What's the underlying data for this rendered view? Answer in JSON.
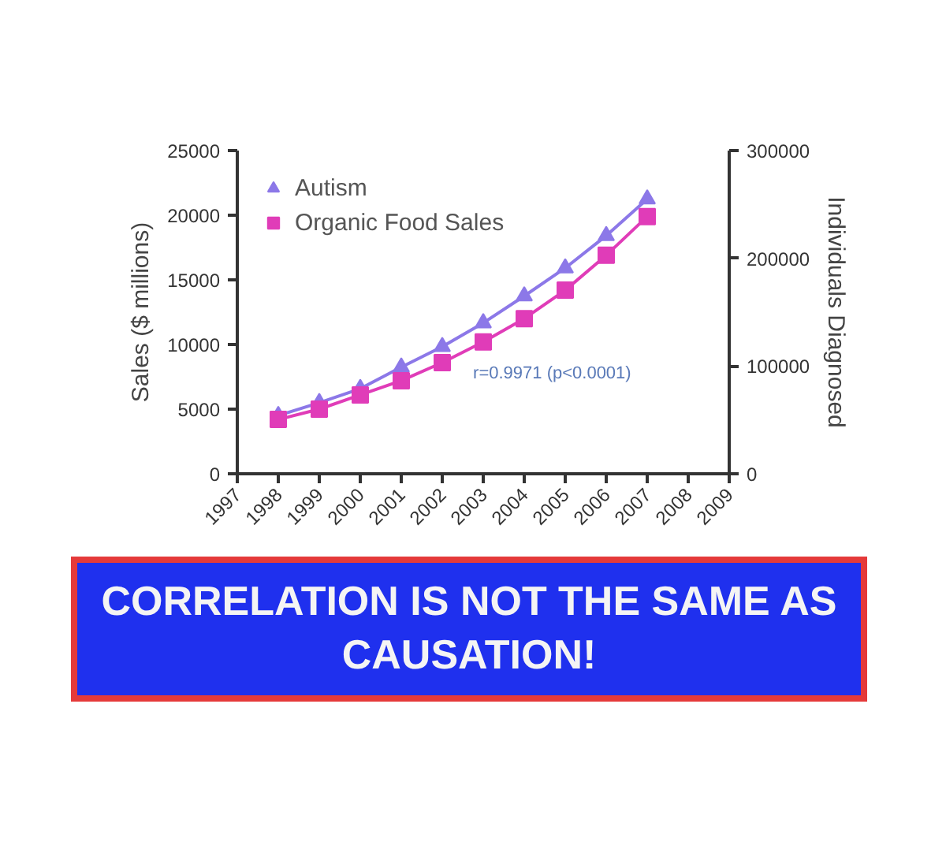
{
  "chart_data": {
    "type": "line",
    "title": "CORRELATION IS NOT THE SAME AS CAUSATION!",
    "ylabel": "Sales ($ millions)",
    "y2label": "Individuals Diagnosed",
    "annotations": [
      "r=0.9971 (p<0.0001)"
    ],
    "x": [
      1998,
      1999,
      2000,
      2001,
      2002,
      2003,
      2004,
      2005,
      2006,
      2007
    ],
    "series": [
      {
        "name": "Autism",
        "color": "#8c78e8",
        "axis": "y2",
        "marker": "triangle",
        "values": [
          54000,
          66000,
          79000,
          99000,
          118000,
          140000,
          165000,
          191000,
          221000,
          255000
        ]
      },
      {
        "name": "Organic Food Sales",
        "color": "#e03cb8",
        "marker": "square",
        "values": [
          4200,
          5000,
          6100,
          7200,
          8600,
          10200,
          12000,
          14200,
          16900,
          19900
        ]
      }
    ],
    "xlim": [
      1997,
      2009
    ],
    "xticks": [
      1997,
      1998,
      1999,
      2000,
      2001,
      2002,
      2003,
      2004,
      2005,
      2006,
      2007,
      2008,
      2009
    ],
    "ylim": [
      0,
      25000
    ],
    "yticks": [
      0,
      5000,
      10000,
      15000,
      20000,
      25000
    ],
    "y2lim": [
      0,
      300000
    ],
    "y2ticks": [
      0,
      100000,
      200000,
      300000
    ],
    "legend": "top left",
    "grid": false,
    "line_style": "solid"
  }
}
